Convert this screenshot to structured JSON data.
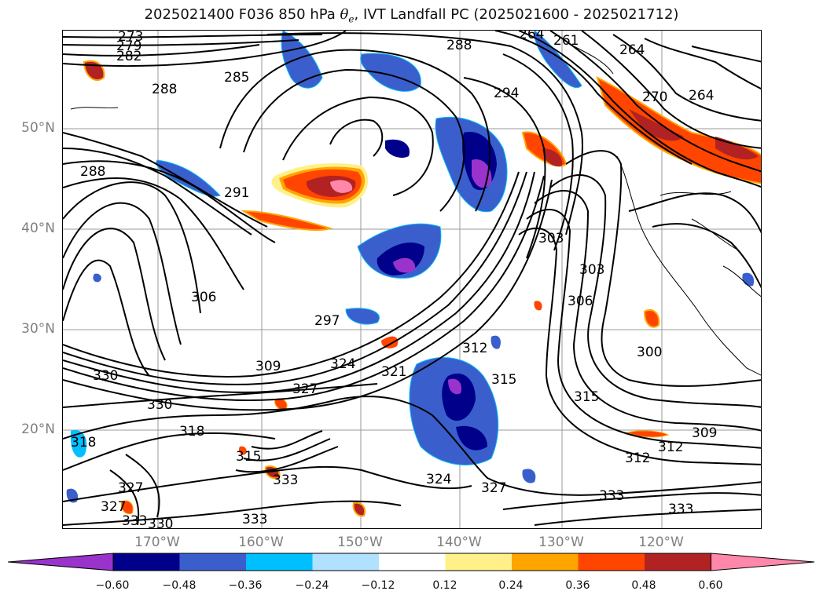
{
  "title": {
    "prefix": "2025021400 F036 850 hPa",
    "theta": "θ",
    "theta_sub": "e",
    "suffix": ", IVT Landfall PC (2025021600 - 2025021712)"
  },
  "map": {
    "lat_labels": [
      "50°N",
      "40°N",
      "30°N",
      "20°N"
    ],
    "lon_labels": [
      "170°W",
      "160°W",
      "150°W",
      "140°W",
      "130°W",
      "120°W"
    ],
    "contour_labels": [
      "273",
      "279",
      "282",
      "288",
      "285",
      "288",
      "294",
      "264",
      "261",
      "264",
      "270",
      "264",
      "288",
      "291",
      "297",
      "306",
      "303",
      "306",
      "303",
      "300",
      "309",
      "312",
      "324",
      "321",
      "327",
      "330",
      "330",
      "318",
      "315",
      "312",
      "315",
      "315",
      "309",
      "312",
      "318",
      "333",
      "327",
      "324",
      "327",
      "333",
      "333",
      "333",
      "330",
      "327",
      "333"
    ]
  },
  "colorbar": {
    "ticks": [
      "−0.60",
      "−0.48",
      "−0.36",
      "−0.24",
      "−0.12",
      "0.12",
      "0.24",
      "0.36",
      "0.48",
      "0.60"
    ],
    "colors": [
      "#9933cc",
      "#00008b",
      "#3a5fcd",
      "#00bfff",
      "#b0e2ff",
      "#ffffff",
      "#fff08a",
      "#ffa500",
      "#ff4500",
      "#b22222",
      "#ff88aa"
    ]
  }
}
